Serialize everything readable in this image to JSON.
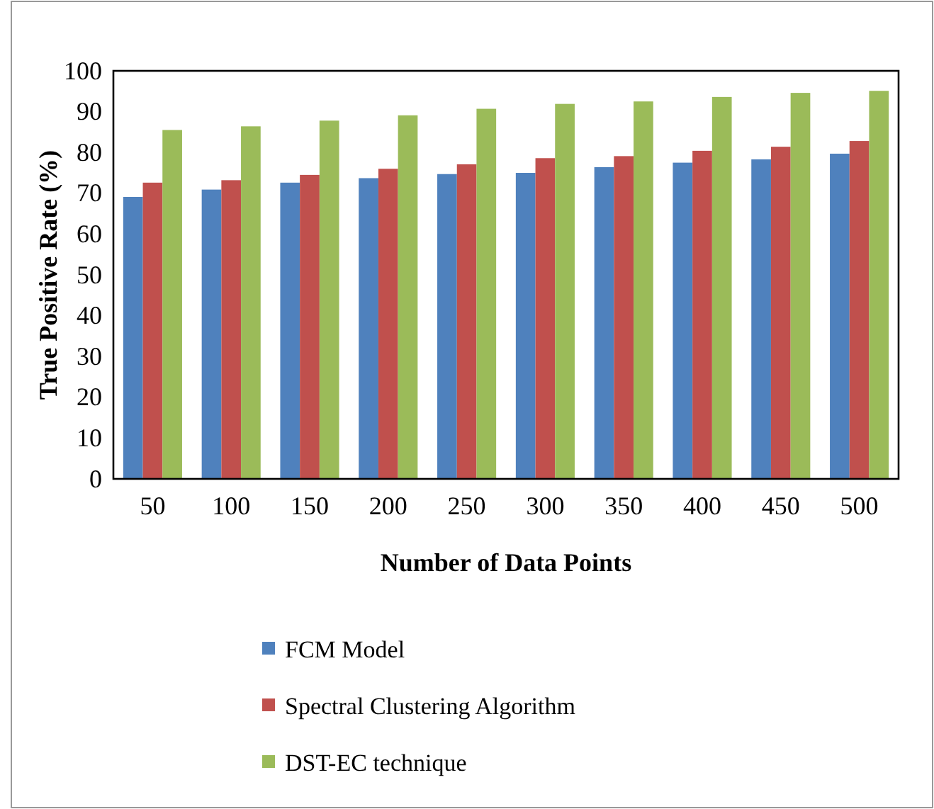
{
  "chart_data": {
    "type": "bar",
    "xlabel": "Number of Data Points",
    "ylabel": "True Positive Rate (%)",
    "categories": [
      "50",
      "100",
      "150",
      "200",
      "250",
      "300",
      "350",
      "400",
      "450",
      "500"
    ],
    "series": [
      {
        "name": "FCM Model",
        "color": "#4f81bd",
        "values": [
          69.1,
          70.9,
          72.6,
          73.7,
          74.7,
          75.0,
          76.4,
          77.5,
          78.3,
          79.7
        ]
      },
      {
        "name": "Spectral Clustering Algorithm",
        "color": "#c0504d",
        "values": [
          72.6,
          73.2,
          74.5,
          76.0,
          77.1,
          78.6,
          79.1,
          80.4,
          81.4,
          82.8
        ]
      },
      {
        "name": "DST-EC technique",
        "color": "#9bbb59",
        "values": [
          85.5,
          86.4,
          87.8,
          89.1,
          90.7,
          91.9,
          92.5,
          93.6,
          94.6,
          95.1
        ]
      }
    ],
    "ylim": [
      0,
      100
    ],
    "yticks": [
      0,
      10,
      20,
      30,
      40,
      50,
      60,
      70,
      80,
      90,
      100
    ],
    "grid": false,
    "legend": "bottom"
  }
}
